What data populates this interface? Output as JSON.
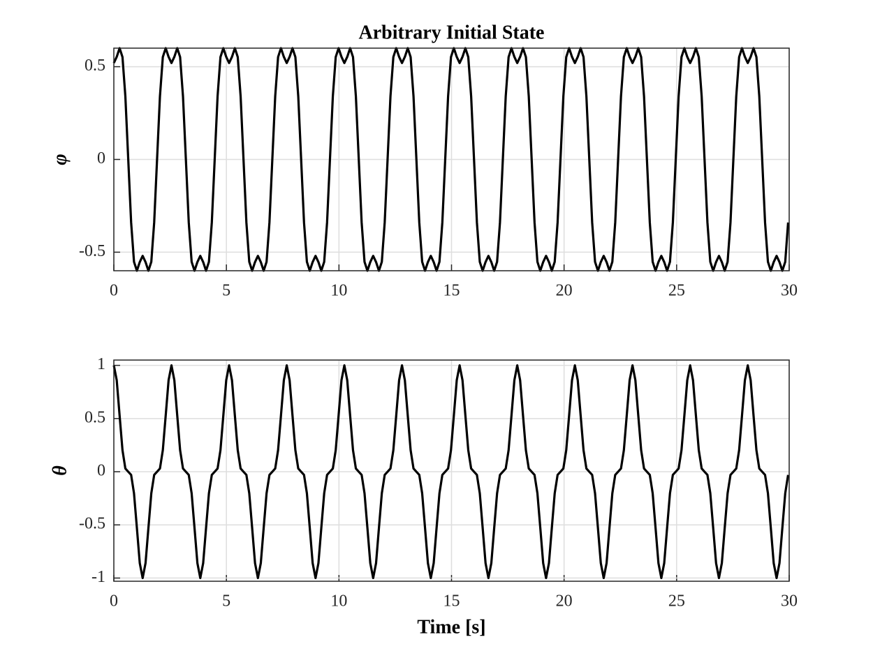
{
  "chart_data": [
    {
      "type": "line",
      "title": "Arbitrary Initial State",
      "y_label": "φ",
      "x": [
        0,
        0.128,
        0.256,
        0.384,
        0.512,
        0.64,
        0.768,
        0.896,
        1.024,
        1.152,
        1.28,
        1.408,
        1.536,
        1.664,
        1.792,
        1.92,
        2.048,
        2.176,
        2.304,
        2.432,
        2.56,
        2.688,
        2.816,
        2.944,
        3.072,
        3.2,
        3.328,
        3.456,
        3.584,
        3.712,
        3.84,
        3.968,
        4.096,
        4.224,
        4.352,
        4.48,
        4.608,
        4.736,
        4.864,
        4.992,
        5.12,
        5.248,
        5.376,
        5.504,
        5.632,
        5.76,
        5.888,
        6.016,
        6.144,
        6.272,
        6.4,
        6.528,
        6.656,
        6.784,
        6.912,
        7.04,
        7.168,
        7.296,
        7.424,
        7.552,
        7.68,
        7.808,
        7.936,
        8.064,
        8.192,
        8.32,
        8.448,
        8.576,
        8.704,
        8.832,
        8.96,
        9.088,
        9.216,
        9.344,
        9.472,
        9.6,
        9.728,
        9.856,
        9.984,
        10.112,
        10.24,
        10.368,
        10.496,
        10.624,
        10.752,
        10.88,
        11.008,
        11.136,
        11.264,
        11.392,
        11.52,
        11.648,
        11.776,
        11.904,
        12.032,
        12.16,
        12.288,
        12.416,
        12.544,
        12.672,
        12.8,
        12.928,
        13.056,
        13.184,
        13.312,
        13.44,
        13.568,
        13.696,
        13.824,
        13.952,
        14.08,
        14.208,
        14.336,
        14.464,
        14.592,
        14.72,
        14.848,
        14.976,
        15.104,
        15.232,
        15.36,
        15.488,
        15.616,
        15.744,
        15.872,
        16,
        16.128,
        16.256,
        16.384,
        16.512,
        16.64,
        16.768,
        16.896,
        17.024,
        17.152,
        17.28,
        17.408,
        17.536,
        17.664,
        17.792,
        17.92,
        18.048,
        18.176,
        18.304,
        18.432,
        18.56,
        18.688,
        18.816,
        18.944,
        19.072,
        19.2,
        19.328,
        19.456,
        19.584,
        19.712,
        19.84,
        19.968,
        20.096,
        20.224,
        20.352,
        20.48,
        20.608,
        20.736,
        20.864,
        20.992,
        21.12,
        21.248,
        21.376,
        21.504,
        21.632,
        21.76,
        21.888,
        22.016,
        22.144,
        22.272,
        22.4,
        22.528,
        22.656,
        22.784,
        22.912,
        23.04,
        23.168,
        23.296,
        23.424,
        23.552,
        23.68,
        23.808,
        23.936,
        24.064,
        24.192,
        24.32,
        24.448,
        24.576,
        24.704,
        24.832,
        24.96,
        25.088,
        25.216,
        25.344,
        25.472,
        25.6,
        25.728,
        25.856,
        25.984,
        26.112,
        26.24,
        26.368,
        26.496,
        26.624,
        26.752,
        26.88,
        27.008,
        27.136,
        27.264,
        27.392,
        27.52,
        27.648,
        27.776,
        27.904,
        28.032,
        28.16,
        28.288,
        28.416,
        28.544,
        28.672,
        28.8,
        28.928,
        29.056,
        29.184,
        29.312,
        29.44,
        29.568,
        29.696,
        29.824,
        29.952
      ],
      "series": [
        {
          "color": "#000000",
          "values": [
            0.52,
            0.553,
            0.6,
            0.552,
            0.34,
            0,
            -0.34,
            -0.552,
            -0.6,
            -0.553,
            -0.52,
            -0.553,
            -0.6,
            -0.552,
            -0.34,
            0,
            0.34,
            0.552,
            0.6,
            0.553,
            0.52,
            0.553,
            0.6,
            0.552,
            0.34,
            0,
            -0.34,
            -0.552,
            -0.6,
            -0.553,
            -0.52,
            -0.553,
            -0.6,
            -0.552,
            -0.34,
            0,
            0.34,
            0.552,
            0.6,
            0.553,
            0.52,
            0.553,
            0.6,
            0.552,
            0.34,
            0,
            -0.34,
            -0.552,
            -0.6,
            -0.553,
            -0.52,
            -0.553,
            -0.6,
            -0.552,
            -0.34,
            0,
            0.34,
            0.552,
            0.6,
            0.553,
            0.52,
            0.553,
            0.6,
            0.552,
            0.34,
            0,
            -0.34,
            -0.552,
            -0.6,
            -0.553,
            -0.52,
            -0.553,
            -0.6,
            -0.552,
            -0.34,
            0,
            0.34,
            0.552,
            0.6,
            0.553,
            0.52,
            0.553,
            0.6,
            0.552,
            0.34,
            0,
            -0.34,
            -0.552,
            -0.6,
            -0.553,
            -0.52,
            -0.553,
            -0.6,
            -0.552,
            -0.34,
            0,
            0.34,
            0.552,
            0.6,
            0.553,
            0.52,
            0.553,
            0.6,
            0.552,
            0.34,
            0,
            -0.34,
            -0.552,
            -0.6,
            -0.553,
            -0.52,
            -0.553,
            -0.6,
            -0.552,
            -0.34,
            0,
            0.34,
            0.552,
            0.6,
            0.553,
            0.52,
            0.553,
            0.6,
            0.552,
            0.34,
            0,
            -0.34,
            -0.552,
            -0.6,
            -0.553,
            -0.52,
            -0.553,
            -0.6,
            -0.552,
            -0.34,
            0,
            0.34,
            0.552,
            0.6,
            0.553,
            0.52,
            0.553,
            0.6,
            0.552,
            0.34,
            0,
            -0.34,
            -0.552,
            -0.6,
            -0.553,
            -0.52,
            -0.553,
            -0.6,
            -0.552,
            -0.34,
            0,
            0.34,
            0.552,
            0.6,
            0.553,
            0.52,
            0.553,
            0.6,
            0.552,
            0.34,
            0,
            -0.34,
            -0.552,
            -0.6,
            -0.553,
            -0.52,
            -0.553,
            -0.6,
            -0.552,
            -0.34,
            0,
            0.34,
            0.552,
            0.6,
            0.553,
            0.52,
            0.553,
            0.6,
            0.552,
            0.34,
            0,
            -0.34,
            -0.552,
            -0.6,
            -0.553,
            -0.52,
            -0.553,
            -0.6,
            -0.552,
            -0.34,
            0,
            0.34,
            0.552,
            0.6,
            0.553,
            0.52,
            0.553,
            0.6,
            0.552,
            0.34,
            0,
            -0.34,
            -0.552,
            -0.6,
            -0.553,
            -0.52,
            -0.553,
            -0.6,
            -0.552,
            -0.34,
            0,
            0.34,
            0.552,
            0.6,
            0.553,
            0.52,
            0.553,
            0.6,
            0.552,
            0.34,
            0,
            -0.34,
            -0.552,
            -0.6,
            -0.553,
            -0.52,
            -0.553,
            -0.6,
            -0.552,
            -0.34
          ]
        }
      ],
      "xlim": [
        0,
        30
      ],
      "xticks": [
        0,
        5,
        10,
        15,
        20,
        25,
        30
      ],
      "ylim": [
        -0.6,
        0.6
      ],
      "yticks": [
        -0.5,
        0,
        0.5
      ],
      "grid": true
    },
    {
      "type": "line",
      "x_label": "Time [s]",
      "y_label": "θ",
      "x": [
        0,
        0.128,
        0.256,
        0.384,
        0.512,
        0.64,
        0.768,
        0.896,
        1.024,
        1.152,
        1.28,
        1.408,
        1.536,
        1.664,
        1.792,
        1.92,
        2.048,
        2.176,
        2.304,
        2.432,
        2.56,
        2.688,
        2.816,
        2.944,
        3.072,
        3.2,
        3.328,
        3.456,
        3.584,
        3.712,
        3.84,
        3.968,
        4.096,
        4.224,
        4.352,
        4.48,
        4.608,
        4.736,
        4.864,
        4.992,
        5.12,
        5.248,
        5.376,
        5.504,
        5.632,
        5.76,
        5.888,
        6.016,
        6.144,
        6.272,
        6.4,
        6.528,
        6.656,
        6.784,
        6.912,
        7.04,
        7.168,
        7.296,
        7.424,
        7.552,
        7.68,
        7.808,
        7.936,
        8.064,
        8.192,
        8.32,
        8.448,
        8.576,
        8.704,
        8.832,
        8.96,
        9.088,
        9.216,
        9.344,
        9.472,
        9.6,
        9.728,
        9.856,
        9.984,
        10.112,
        10.24,
        10.368,
        10.496,
        10.624,
        10.752,
        10.88,
        11.008,
        11.136,
        11.264,
        11.392,
        11.52,
        11.648,
        11.776,
        11.904,
        12.032,
        12.16,
        12.288,
        12.416,
        12.544,
        12.672,
        12.8,
        12.928,
        13.056,
        13.184,
        13.312,
        13.44,
        13.568,
        13.696,
        13.824,
        13.952,
        14.08,
        14.208,
        14.336,
        14.464,
        14.592,
        14.72,
        14.848,
        14.976,
        15.104,
        15.232,
        15.36,
        15.488,
        15.616,
        15.744,
        15.872,
        16,
        16.128,
        16.256,
        16.384,
        16.512,
        16.64,
        16.768,
        16.896,
        17.024,
        17.152,
        17.28,
        17.408,
        17.536,
        17.664,
        17.792,
        17.92,
        18.048,
        18.176,
        18.304,
        18.432,
        18.56,
        18.688,
        18.816,
        18.944,
        19.072,
        19.2,
        19.328,
        19.456,
        19.584,
        19.712,
        19.84,
        19.968,
        20.096,
        20.224,
        20.352,
        20.48,
        20.608,
        20.736,
        20.864,
        20.992,
        21.12,
        21.248,
        21.376,
        21.504,
        21.632,
        21.76,
        21.888,
        22.016,
        22.144,
        22.272,
        22.4,
        22.528,
        22.656,
        22.784,
        22.912,
        23.04,
        23.168,
        23.296,
        23.424,
        23.552,
        23.68,
        23.808,
        23.936,
        24.064,
        24.192,
        24.32,
        24.448,
        24.576,
        24.704,
        24.832,
        24.96,
        25.088,
        25.216,
        25.344,
        25.472,
        25.6,
        25.728,
        25.856,
        25.984,
        26.112,
        26.24,
        26.368,
        26.496,
        26.624,
        26.752,
        26.88,
        27.008,
        27.136,
        27.264,
        27.392,
        27.52,
        27.648,
        27.776,
        27.904,
        28.032,
        28.16,
        28.288,
        28.416,
        28.544,
        28.672,
        28.8,
        28.928,
        29.056,
        29.184,
        29.312,
        29.44,
        29.568,
        29.696,
        29.824,
        29.952
      ],
      "series": [
        {
          "color": "#000000",
          "values": [
            1,
            0.86,
            0.529,
            0.203,
            0.03,
            0,
            -0.03,
            -0.203,
            -0.529,
            -0.86,
            -1,
            -0.86,
            -0.529,
            -0.203,
            -0.03,
            0,
            0.03,
            0.203,
            0.529,
            0.86,
            1,
            0.86,
            0.529,
            0.203,
            0.03,
            0,
            -0.03,
            -0.203,
            -0.529,
            -0.86,
            -1,
            -0.86,
            -0.529,
            -0.203,
            -0.03,
            0,
            0.03,
            0.203,
            0.529,
            0.86,
            1,
            0.86,
            0.529,
            0.203,
            0.03,
            0,
            -0.03,
            -0.203,
            -0.529,
            -0.86,
            -1,
            -0.86,
            -0.529,
            -0.203,
            -0.03,
            0,
            0.03,
            0.203,
            0.529,
            0.86,
            1,
            0.86,
            0.529,
            0.203,
            0.03,
            0,
            -0.03,
            -0.203,
            -0.529,
            -0.86,
            -1,
            -0.86,
            -0.529,
            -0.203,
            -0.03,
            0,
            0.03,
            0.203,
            0.529,
            0.86,
            1,
            0.86,
            0.529,
            0.203,
            0.03,
            0,
            -0.03,
            -0.203,
            -0.529,
            -0.86,
            -1,
            -0.86,
            -0.529,
            -0.203,
            -0.03,
            0,
            0.03,
            0.203,
            0.529,
            0.86,
            1,
            0.86,
            0.529,
            0.203,
            0.03,
            0,
            -0.03,
            -0.203,
            -0.529,
            -0.86,
            -1,
            -0.86,
            -0.529,
            -0.203,
            -0.03,
            0,
            0.03,
            0.203,
            0.529,
            0.86,
            1,
            0.86,
            0.529,
            0.203,
            0.03,
            0,
            -0.03,
            -0.203,
            -0.529,
            -0.86,
            -1,
            -0.86,
            -0.529,
            -0.203,
            -0.03,
            0,
            0.03,
            0.203,
            0.529,
            0.86,
            1,
            0.86,
            0.529,
            0.203,
            0.03,
            0,
            -0.03,
            -0.203,
            -0.529,
            -0.86,
            -1,
            -0.86,
            -0.529,
            -0.203,
            -0.03,
            0,
            0.03,
            0.203,
            0.529,
            0.86,
            1,
            0.86,
            0.529,
            0.203,
            0.03,
            0,
            -0.03,
            -0.203,
            -0.529,
            -0.86,
            -1,
            -0.86,
            -0.529,
            -0.203,
            -0.03,
            0,
            0.03,
            0.203,
            0.529,
            0.86,
            1,
            0.86,
            0.529,
            0.203,
            0.03,
            0,
            -0.03,
            -0.203,
            -0.529,
            -0.86,
            -1,
            -0.86,
            -0.529,
            -0.203,
            -0.03,
            0,
            0.03,
            0.203,
            0.529,
            0.86,
            1,
            0.86,
            0.529,
            0.203,
            0.03,
            0,
            -0.03,
            -0.203,
            -0.529,
            -0.86,
            -1,
            -0.86,
            -0.529,
            -0.203,
            -0.03,
            0,
            0.03,
            0.203,
            0.529,
            0.86,
            1,
            0.86,
            0.529,
            0.203,
            0.03,
            0,
            -0.03,
            -0.203,
            -0.529,
            -0.86,
            -1,
            -0.86,
            -0.529,
            -0.203,
            -0.03
          ]
        }
      ],
      "xlim": [
        0,
        30
      ],
      "xticks": [
        0,
        5,
        10,
        15,
        20,
        25,
        30
      ],
      "ylim": [
        -1.03,
        1.05
      ],
      "yticks": [
        -1,
        -0.5,
        0,
        0.5,
        1
      ],
      "grid": true
    }
  ]
}
